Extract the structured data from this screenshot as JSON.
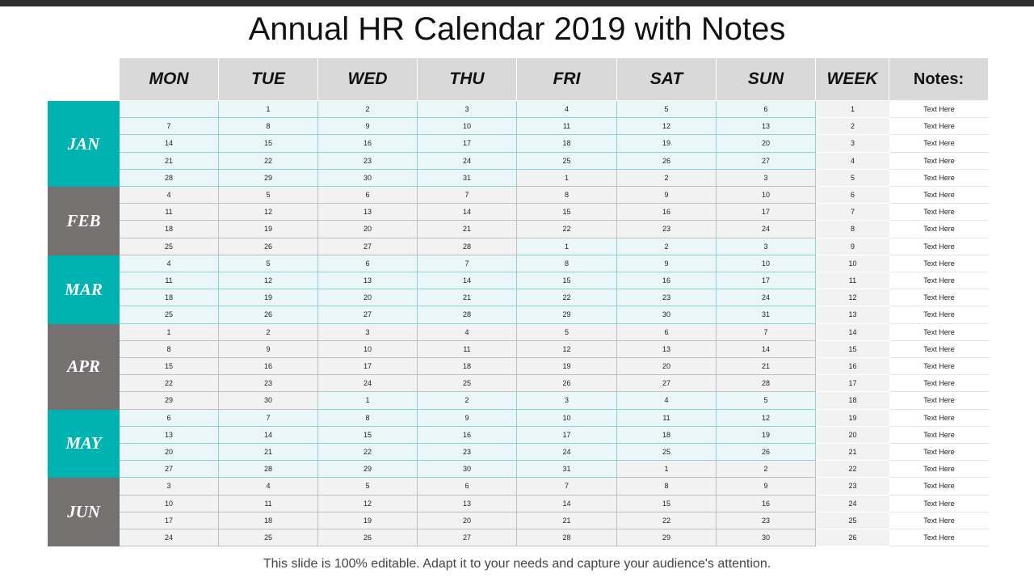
{
  "title": "Annual HR Calendar 2019 with Notes",
  "footer": "This slide is 100% editable. Adapt it to your needs and capture your audience's attention.",
  "colors": {
    "teal": "#00b3b3",
    "gray": "#767171",
    "header_bg": "#d9d9d9",
    "current_cell": "#eaf6f7",
    "other_cell": "#f2f2f2"
  },
  "headers": [
    "MON",
    "TUE",
    "WED",
    "THU",
    "FRI",
    "SAT",
    "SUN",
    "WEEK",
    "Notes:"
  ],
  "months": [
    {
      "name": "JAN",
      "color": "teal",
      "weeks": [
        {
          "week": "1",
          "note": "Text Here",
          "days": [
            [
              "",
              1
            ],
            [
              "1",
              1
            ],
            [
              "2",
              1
            ],
            [
              "3",
              1
            ],
            [
              "4",
              1
            ],
            [
              "5",
              1
            ],
            [
              "6",
              1
            ]
          ]
        },
        {
          "week": "2",
          "note": "Text Here",
          "days": [
            [
              "7",
              1
            ],
            [
              "8",
              1
            ],
            [
              "9",
              1
            ],
            [
              "10",
              1
            ],
            [
              "11",
              1
            ],
            [
              "12",
              1
            ],
            [
              "13",
              1
            ]
          ]
        },
        {
          "week": "3",
          "note": "Text Here",
          "days": [
            [
              "14",
              1
            ],
            [
              "15",
              1
            ],
            [
              "16",
              1
            ],
            [
              "17",
              1
            ],
            [
              "18",
              1
            ],
            [
              "19",
              1
            ],
            [
              "20",
              1
            ]
          ]
        },
        {
          "week": "4",
          "note": "Text Here",
          "days": [
            [
              "21",
              1
            ],
            [
              "22",
              1
            ],
            [
              "23",
              1
            ],
            [
              "24",
              1
            ],
            [
              "25",
              1
            ],
            [
              "26",
              1
            ],
            [
              "27",
              1
            ]
          ]
        },
        {
          "week": "5",
          "note": "Text Here",
          "days": [
            [
              "28",
              1
            ],
            [
              "29",
              1
            ],
            [
              "30",
              1
            ],
            [
              "31",
              1
            ],
            [
              "1",
              0
            ],
            [
              "2",
              0
            ],
            [
              "3",
              0
            ]
          ]
        }
      ]
    },
    {
      "name": "FEB",
      "color": "gray",
      "weeks": [
        {
          "week": "6",
          "note": "Text Here",
          "days": [
            [
              "4",
              0
            ],
            [
              "5",
              0
            ],
            [
              "6",
              0
            ],
            [
              "7",
              0
            ],
            [
              "8",
              0
            ],
            [
              "9",
              0
            ],
            [
              "10",
              0
            ]
          ]
        },
        {
          "week": "7",
          "note": "Text Here",
          "days": [
            [
              "11",
              0
            ],
            [
              "12",
              0
            ],
            [
              "13",
              0
            ],
            [
              "14",
              0
            ],
            [
              "15",
              0
            ],
            [
              "16",
              0
            ],
            [
              "17",
              0
            ]
          ]
        },
        {
          "week": "8",
          "note": "Text Here",
          "days": [
            [
              "18",
              0
            ],
            [
              "19",
              0
            ],
            [
              "20",
              0
            ],
            [
              "21",
              0
            ],
            [
              "22",
              0
            ],
            [
              "23",
              0
            ],
            [
              "24",
              0
            ]
          ]
        },
        {
          "week": "9",
          "note": "Text Here",
          "days": [
            [
              "25",
              0
            ],
            [
              "26",
              0
            ],
            [
              "27",
              0
            ],
            [
              "28",
              0
            ],
            [
              "1",
              1
            ],
            [
              "2",
              1
            ],
            [
              "3",
              1
            ]
          ]
        }
      ]
    },
    {
      "name": "MAR",
      "color": "teal",
      "weeks": [
        {
          "week": "10",
          "note": "Text Here",
          "days": [
            [
              "4",
              1
            ],
            [
              "5",
              1
            ],
            [
              "6",
              1
            ],
            [
              "7",
              1
            ],
            [
              "8",
              1
            ],
            [
              "9",
              1
            ],
            [
              "10",
              1
            ]
          ]
        },
        {
          "week": "11",
          "note": "Text Here",
          "days": [
            [
              "11",
              1
            ],
            [
              "12",
              1
            ],
            [
              "13",
              1
            ],
            [
              "14",
              1
            ],
            [
              "15",
              1
            ],
            [
              "16",
              1
            ],
            [
              "17",
              1
            ]
          ]
        },
        {
          "week": "12",
          "note": "Text Here",
          "days": [
            [
              "18",
              1
            ],
            [
              "19",
              1
            ],
            [
              "20",
              1
            ],
            [
              "21",
              1
            ],
            [
              "22",
              1
            ],
            [
              "23",
              1
            ],
            [
              "24",
              1
            ]
          ]
        },
        {
          "week": "13",
          "note": "Text Here",
          "days": [
            [
              "25",
              1
            ],
            [
              "26",
              1
            ],
            [
              "27",
              1
            ],
            [
              "28",
              1
            ],
            [
              "29",
              1
            ],
            [
              "30",
              1
            ],
            [
              "31",
              1
            ]
          ]
        }
      ]
    },
    {
      "name": "APR",
      "color": "gray",
      "weeks": [
        {
          "week": "14",
          "note": "Text Here",
          "days": [
            [
              "1",
              0
            ],
            [
              "2",
              0
            ],
            [
              "3",
              0
            ],
            [
              "4",
              0
            ],
            [
              "5",
              0
            ],
            [
              "6",
              0
            ],
            [
              "7",
              0
            ]
          ]
        },
        {
          "week": "15",
          "note": "Text Here",
          "days": [
            [
              "8",
              0
            ],
            [
              "9",
              0
            ],
            [
              "10",
              0
            ],
            [
              "11",
              0
            ],
            [
              "12",
              0
            ],
            [
              "13",
              0
            ],
            [
              "14",
              0
            ]
          ]
        },
        {
          "week": "16",
          "note": "Text Here",
          "days": [
            [
              "15",
              0
            ],
            [
              "16",
              0
            ],
            [
              "17",
              0
            ],
            [
              "18",
              0
            ],
            [
              "19",
              0
            ],
            [
              "20",
              0
            ],
            [
              "21",
              0
            ]
          ]
        },
        {
          "week": "17",
          "note": "Text Here",
          "days": [
            [
              "22",
              0
            ],
            [
              "23",
              0
            ],
            [
              "24",
              0
            ],
            [
              "25",
              0
            ],
            [
              "26",
              0
            ],
            [
              "27",
              0
            ],
            [
              "28",
              0
            ]
          ]
        },
        {
          "week": "18",
          "note": "Text Here",
          "days": [
            [
              "29",
              0
            ],
            [
              "30",
              0
            ],
            [
              "1",
              1
            ],
            [
              "2",
              1
            ],
            [
              "3",
              1
            ],
            [
              "4",
              1
            ],
            [
              "5",
              1
            ]
          ]
        }
      ]
    },
    {
      "name": "MAY",
      "color": "teal",
      "weeks": [
        {
          "week": "19",
          "note": "Text Here",
          "days": [
            [
              "6",
              1
            ],
            [
              "7",
              1
            ],
            [
              "8",
              1
            ],
            [
              "9",
              1
            ],
            [
              "10",
              1
            ],
            [
              "11",
              1
            ],
            [
              "12",
              1
            ]
          ]
        },
        {
          "week": "20",
          "note": "Text Here",
          "days": [
            [
              "13",
              1
            ],
            [
              "14",
              1
            ],
            [
              "15",
              1
            ],
            [
              "16",
              1
            ],
            [
              "17",
              1
            ],
            [
              "18",
              1
            ],
            [
              "19",
              1
            ]
          ]
        },
        {
          "week": "21",
          "note": "Text Here",
          "days": [
            [
              "20",
              1
            ],
            [
              "21",
              1
            ],
            [
              "22",
              1
            ],
            [
              "23",
              1
            ],
            [
              "24",
              1
            ],
            [
              "25",
              1
            ],
            [
              "26",
              1
            ]
          ]
        },
        {
          "week": "22",
          "note": "Text Here",
          "days": [
            [
              "27",
              1
            ],
            [
              "28",
              1
            ],
            [
              "29",
              1
            ],
            [
              "30",
              1
            ],
            [
              "31",
              1
            ],
            [
              "1",
              0
            ],
            [
              "2",
              0
            ]
          ]
        }
      ]
    },
    {
      "name": "JUN",
      "color": "gray",
      "weeks": [
        {
          "week": "23",
          "note": "Text Here",
          "days": [
            [
              "3",
              0
            ],
            [
              "4",
              0
            ],
            [
              "5",
              0
            ],
            [
              "6",
              0
            ],
            [
              "7",
              0
            ],
            [
              "8",
              0
            ],
            [
              "9",
              0
            ]
          ]
        },
        {
          "week": "24",
          "note": "Text Here",
          "days": [
            [
              "10",
              0
            ],
            [
              "11",
              0
            ],
            [
              "12",
              0
            ],
            [
              "13",
              0
            ],
            [
              "14",
              0
            ],
            [
              "15",
              0
            ],
            [
              "16",
              0
            ]
          ]
        },
        {
          "week": "25",
          "note": "Text Here",
          "days": [
            [
              "17",
              0
            ],
            [
              "18",
              0
            ],
            [
              "19",
              0
            ],
            [
              "20",
              0
            ],
            [
              "21",
              0
            ],
            [
              "22",
              0
            ],
            [
              "23",
              0
            ]
          ]
        },
        {
          "week": "26",
          "note": "Text Here",
          "days": [
            [
              "24",
              0
            ],
            [
              "25",
              0
            ],
            [
              "26",
              0
            ],
            [
              "27",
              0
            ],
            [
              "28",
              0
            ],
            [
              "29",
              0
            ],
            [
              "30",
              0
            ]
          ]
        }
      ]
    }
  ]
}
